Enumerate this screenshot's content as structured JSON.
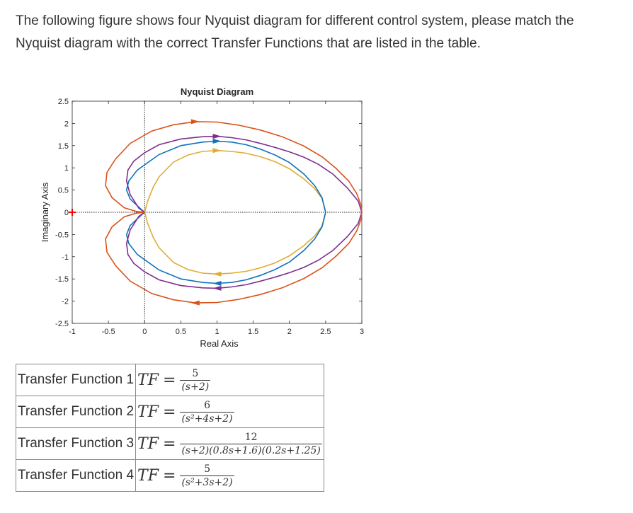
{
  "question": {
    "text": "The following figure shows four Nyquist diagram for different control system, please match the Nyquist diagram with the correct Transfer Functions that are listed in the table."
  },
  "chart_data": {
    "type": "line",
    "title": "Nyquist Diagram",
    "xlabel": "Real Axis",
    "ylabel": "Imaginary Axis",
    "xlim": [
      -1,
      3
    ],
    "ylim": [
      -2.5,
      2.5
    ],
    "xticks": [
      "-1",
      "-0.5",
      "0",
      "0.5",
      "1",
      "1.5",
      "2",
      "2.5",
      "3"
    ],
    "yticks": [
      "2.5",
      "2",
      "1.5",
      "1",
      "0.5",
      "0",
      "-0.5",
      "-1",
      "-1.5",
      "-2",
      "-2.5"
    ],
    "grid": false,
    "legend": "none",
    "critical_point": {
      "x": -1,
      "y": 0,
      "marker": "+",
      "color": "#ff0000"
    },
    "series": [
      {
        "color": "#e0ac33",
        "x": [
          0,
          0.04,
          0.12,
          0.2,
          0.4,
          0.6,
          0.8,
          1.0,
          1.2,
          1.4,
          1.6,
          1.8,
          2.0,
          2.2,
          2.35,
          2.45,
          2.5
        ],
        "y": [
          0,
          0.24,
          0.57,
          0.8,
          1.13,
          1.29,
          1.37,
          1.39,
          1.37,
          1.33,
          1.25,
          1.14,
          0.98,
          0.75,
          0.53,
          0.31,
          0
        ]
      },
      {
        "color": "#0e72bd",
        "x": [
          0,
          -0.05,
          -0.2,
          -0.25,
          -0.22,
          -0.1,
          0.2,
          0.5,
          0.8,
          1.0,
          1.2,
          1.4,
          1.6,
          1.8,
          2.0,
          2.2,
          2.35,
          2.45,
          2.5
        ],
        "y": [
          0,
          0.07,
          0.3,
          0.5,
          0.7,
          0.95,
          1.3,
          1.5,
          1.58,
          1.6,
          1.58,
          1.52,
          1.42,
          1.29,
          1.12,
          0.86,
          0.6,
          0.33,
          0
        ]
      },
      {
        "color": "#7e2f8e",
        "x": [
          0,
          -0.08,
          -0.2,
          -0.25,
          -0.23,
          -0.15,
          0,
          0.2,
          0.5,
          0.8,
          1.0,
          1.2,
          1.4,
          1.6,
          1.8,
          2.0,
          2.2,
          2.4,
          2.6,
          2.8,
          2.95,
          3.0
        ],
        "y": [
          0,
          0.09,
          0.4,
          0.7,
          0.95,
          1.15,
          1.34,
          1.52,
          1.65,
          1.7,
          1.71,
          1.68,
          1.63,
          1.55,
          1.46,
          1.36,
          1.24,
          1.08,
          0.86,
          0.55,
          0.25,
          0
        ]
      },
      {
        "color": "#d95319",
        "x": [
          0,
          -0.12,
          -0.28,
          -0.45,
          -0.54,
          -0.52,
          -0.4,
          -0.2,
          0.1,
          0.4,
          0.7,
          1.0,
          1.3,
          1.6,
          1.9,
          2.2,
          2.45,
          2.65,
          2.82,
          2.93,
          2.99,
          3.0
        ],
        "y": [
          0,
          0.02,
          0.1,
          0.33,
          0.6,
          0.9,
          1.2,
          1.55,
          1.83,
          1.97,
          2.04,
          2.03,
          1.96,
          1.85,
          1.7,
          1.49,
          1.25,
          0.98,
          0.7,
          0.42,
          0.16,
          0
        ]
      }
    ]
  },
  "table": {
    "rows": [
      {
        "name": "Transfer Function 1",
        "lhs": "TF",
        "num": "5",
        "den": "(s+2)"
      },
      {
        "name": "Transfer Function 2",
        "lhs": "TF",
        "num": "6",
        "den": "(s²+4s+2)"
      },
      {
        "name": "Transfer Function 3",
        "lhs": "TF",
        "num": "12",
        "den": "(s+2)(0.8s+1.6)(0.2s+1.25)"
      },
      {
        "name": "Transfer Function 4",
        "lhs": "TF",
        "num": "5",
        "den": "(s²+3s+2)"
      }
    ]
  }
}
